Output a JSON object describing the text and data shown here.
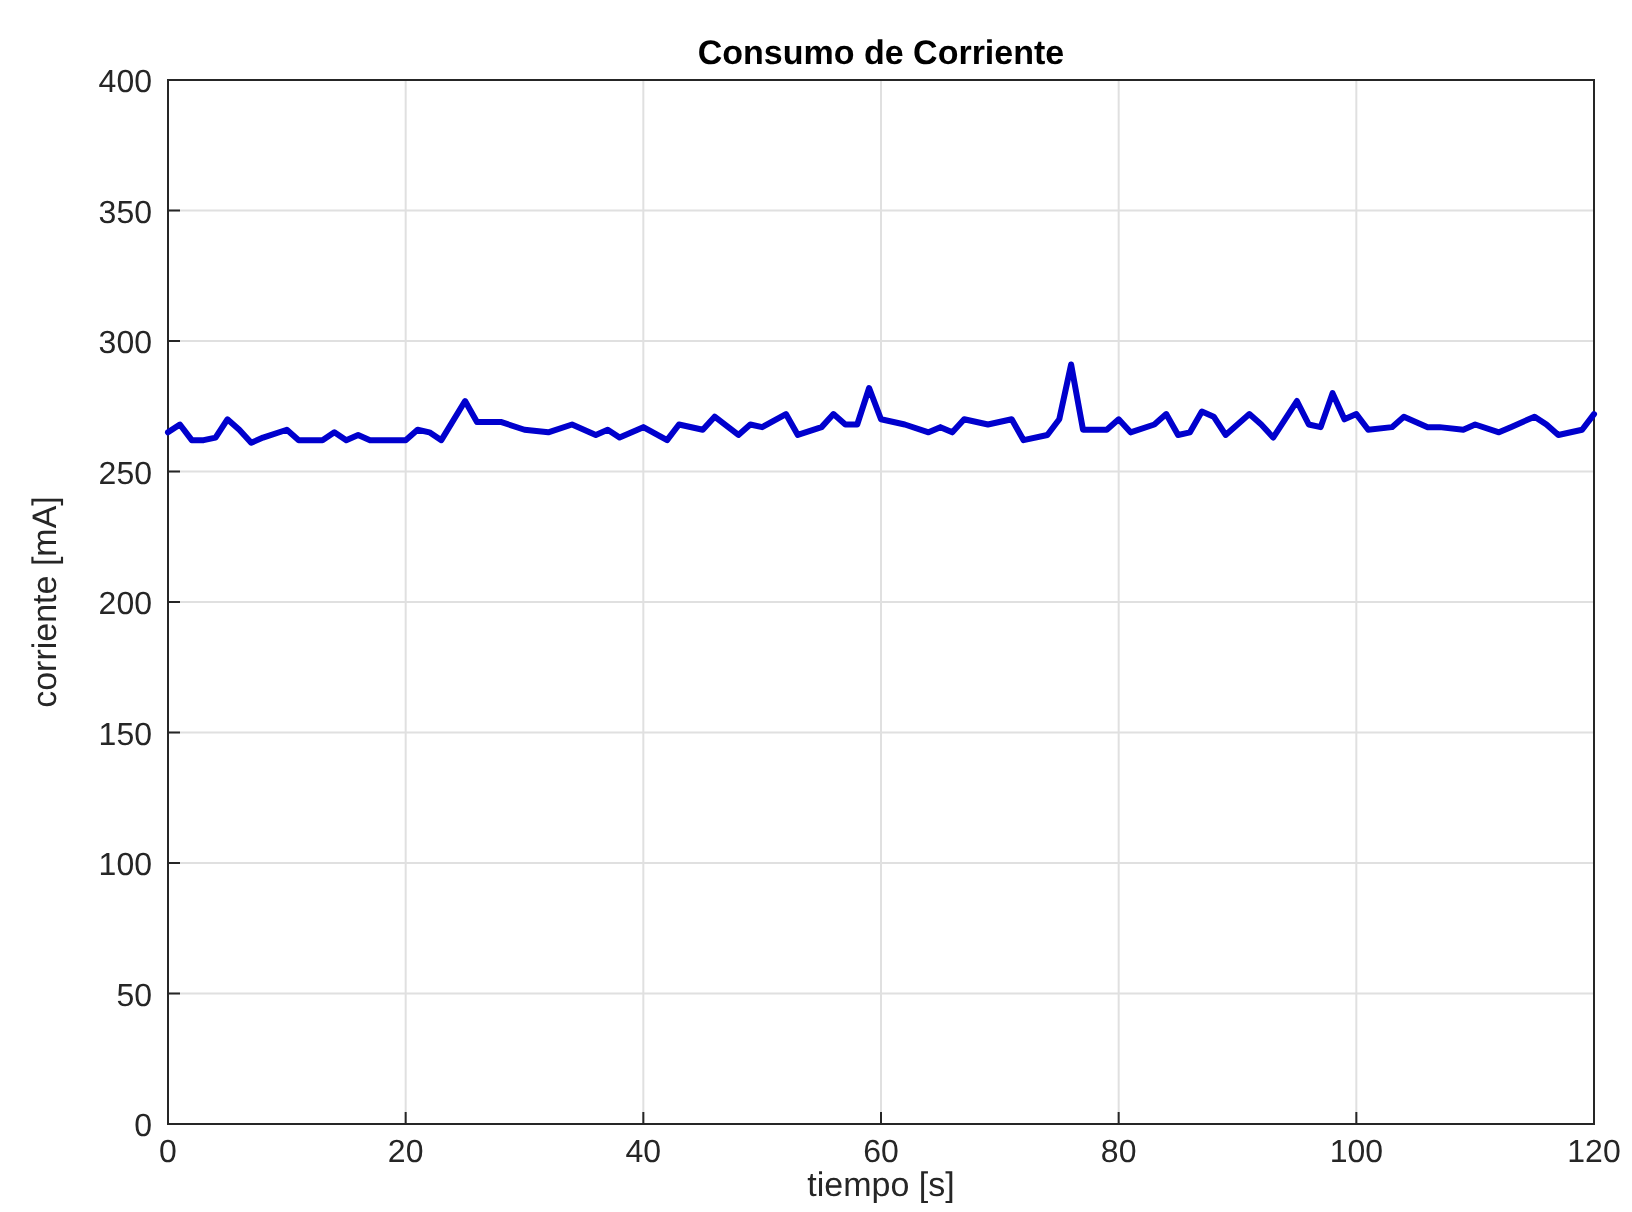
{
  "chart_data": {
    "type": "line",
    "title": "Consumo de Corriente",
    "xlabel": "tiempo [s]",
    "ylabel": "corriente [mA]",
    "series": [
      {
        "color": "#0000cd",
        "x": [
          0,
          1,
          2,
          3,
          4,
          5,
          6,
          7,
          8,
          10,
          11,
          13,
          14,
          15,
          16,
          17,
          20,
          21,
          22,
          23,
          25,
          26,
          28,
          30,
          32,
          34,
          36,
          37,
          38,
          40,
          42,
          43,
          45,
          46,
          48,
          49,
          50,
          52,
          53,
          55,
          56,
          57,
          58,
          59,
          60,
          62,
          64,
          65,
          66,
          67,
          69,
          71,
          72,
          74,
          75,
          76,
          77,
          79,
          80,
          81,
          83,
          84,
          85,
          86,
          87,
          88,
          89,
          91,
          92,
          93,
          95,
          96,
          97,
          98,
          99,
          100,
          101,
          103,
          104,
          105,
          106,
          107,
          109,
          110,
          112,
          113,
          115,
          116,
          117,
          119,
          120
        ],
        "values": [
          265,
          268,
          262,
          262,
          263,
          270,
          266,
          261,
          263,
          266,
          262,
          262,
          265,
          262,
          264,
          262,
          262,
          266,
          265,
          262,
          277,
          269,
          269,
          266,
          265,
          268,
          264,
          266,
          263,
          267,
          262,
          268,
          266,
          271,
          264,
          268,
          267,
          272,
          264,
          267,
          272,
          268,
          268,
          282,
          270,
          268,
          265,
          267,
          265,
          270,
          268,
          270,
          262,
          264,
          270,
          291,
          266,
          266,
          270,
          265,
          268,
          272,
          264,
          265,
          273,
          271,
          264,
          272,
          268,
          263,
          277,
          268,
          267,
          280,
          270,
          272,
          266,
          267,
          271,
          269,
          267,
          267,
          266,
          268,
          265,
          267,
          271,
          268,
          264,
          266,
          272
        ]
      }
    ],
    "xlim": [
      0,
      120
    ],
    "xticks": [
      0,
      20,
      40,
      60,
      80,
      100,
      120
    ],
    "ylim": [
      0,
      400
    ],
    "yticks": [
      0,
      50,
      100,
      150,
      200,
      250,
      300,
      350,
      400
    ],
    "grid": true,
    "line_style": "solid",
    "marker": "none"
  }
}
